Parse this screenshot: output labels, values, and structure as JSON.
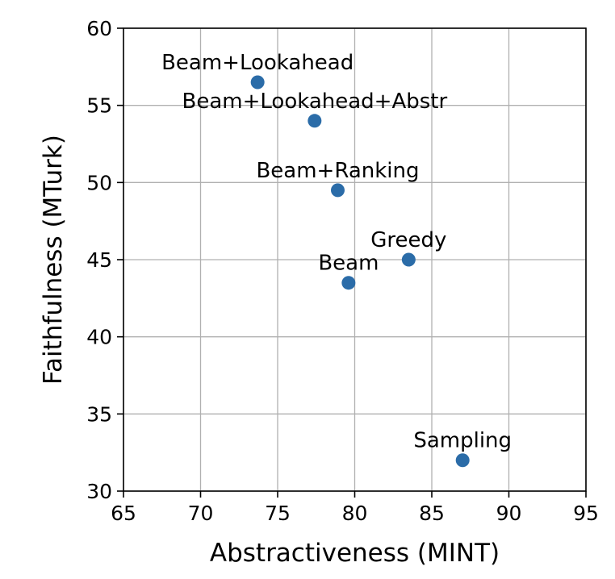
{
  "chart_data": {
    "type": "scatter",
    "xlabel": "Abstractiveness (MINT)",
    "ylabel": "Faithfulness (MTurk)",
    "xlim": [
      65,
      95
    ],
    "ylim": [
      30,
      60
    ],
    "xticks": [
      65,
      70,
      75,
      80,
      85,
      90,
      95
    ],
    "yticks": [
      30,
      35,
      40,
      45,
      50,
      55,
      60
    ],
    "xtick_labels": [
      "65",
      "70",
      "75",
      "80",
      "85",
      "90",
      "95"
    ],
    "ytick_labels": [
      "30",
      "35",
      "40",
      "45",
      "50",
      "55",
      "60"
    ],
    "grid": true,
    "color": "#2b6ca8",
    "points": [
      {
        "label": "Beam+Lookahead",
        "x": 73.7,
        "y": 56.5
      },
      {
        "label": "Beam+Lookahead+Abstr",
        "x": 77.4,
        "y": 54.0
      },
      {
        "label": "Beam+Ranking",
        "x": 78.9,
        "y": 49.5
      },
      {
        "label": "Greedy",
        "x": 83.5,
        "y": 45.0
      },
      {
        "label": "Beam",
        "x": 79.6,
        "y": 43.5
      },
      {
        "label": "Sampling",
        "x": 87.0,
        "y": 32.0
      }
    ]
  }
}
